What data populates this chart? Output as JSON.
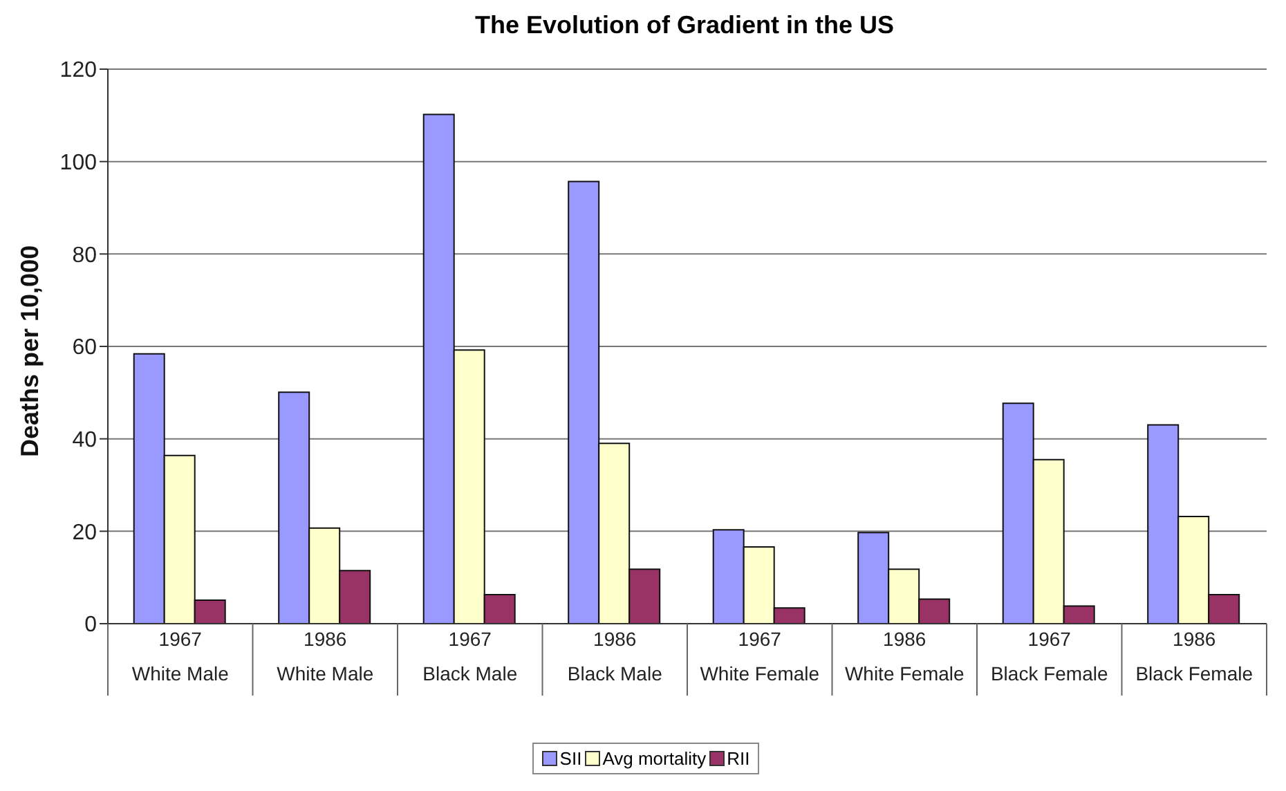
{
  "chart_data": {
    "type": "bar",
    "title": "The Evolution of Gradient in the US",
    "ylabel": "Deaths per 10,000",
    "categories": [
      "1967\nWhite Male",
      "1986\nWhite Male",
      "1967\nBlack Male",
      "1986\nBlack Male",
      "1967\nWhite Female",
      "1986\nWhite Female",
      "1967\nBlack Female",
      "1986\nBlack Female"
    ],
    "series": [
      {
        "name": "SII",
        "color": "#9999ff",
        "values": [
          58.4,
          50.1,
          110.2,
          95.7,
          20.3,
          19.7,
          47.7,
          43.0
        ]
      },
      {
        "name": "Avg mortality",
        "color": "#ffffcc",
        "values": [
          36.4,
          20.7,
          59.2,
          39.0,
          16.6,
          11.8,
          35.5,
          23.2
        ]
      },
      {
        "name": "RII",
        "color": "#993366",
        "values": [
          5.1,
          11.5,
          6.3,
          11.8,
          3.4,
          5.3,
          3.8,
          6.3
        ]
      }
    ],
    "ylim": [
      0,
      120
    ],
    "yticks": [
      0,
      20,
      40,
      60,
      80,
      100,
      120
    ],
    "grid": "y",
    "legend": "bottom"
  }
}
